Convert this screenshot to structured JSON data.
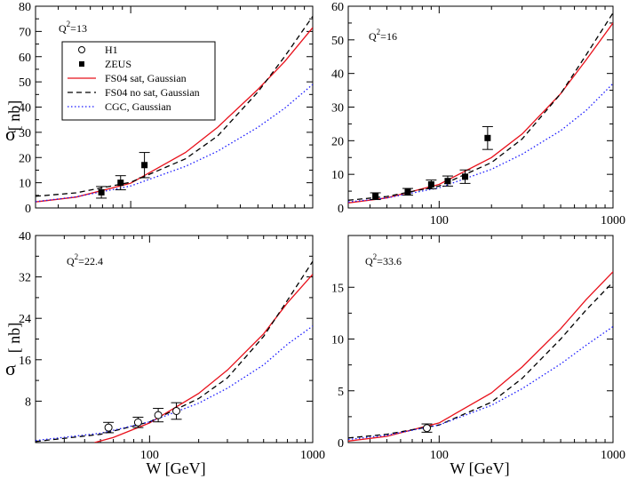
{
  "y_unit": "[ nb]",
  "y_symbol": "σ",
  "x_label": "W [GeV]",
  "legend": [
    {
      "label": "H1",
      "marker": "open-circle"
    },
    {
      "label": "ZEUS",
      "marker": "filled-square"
    },
    {
      "label": "FS04 sat, Gaussian",
      "line": "solid",
      "color": "#e8101a"
    },
    {
      "label": "FS04 no sat, Gaussian",
      "line": "dashed",
      "color": "#000000"
    },
    {
      "label": "CGC, Gaussian",
      "line": "dotted",
      "color": "#1a1aff"
    }
  ],
  "colors": {
    "fs04_sat": "#e8101a",
    "fs04_nosat": "#000000",
    "cgc": "#1a1aff"
  },
  "chart_data": [
    {
      "type": "scatter",
      "panel": "top-left",
      "annotation": {
        "base": "Q",
        "sup": "2",
        "rest": "=13"
      },
      "xscale": "log",
      "xlim": [
        30,
        1000
      ],
      "ylim": [
        0,
        80
      ],
      "xticks": [
        100,
        1000
      ],
      "xtick_labels": [
        "",
        ""
      ],
      "yticks": [
        0,
        10,
        20,
        30,
        40,
        50,
        60,
        70,
        80
      ],
      "ytick_labels": [
        "0",
        "10",
        "20",
        "30",
        "40",
        "50",
        "60",
        "70",
        "80"
      ],
      "points": [
        {
          "set": "ZEUS",
          "x": 69,
          "y": 6.2,
          "err": 2.3
        },
        {
          "set": "ZEUS",
          "x": 88,
          "y": 10.0,
          "err": 2.8
        },
        {
          "set": "ZEUS",
          "x": 119,
          "y": 17.0,
          "err": 5.0
        }
      ],
      "series": [
        {
          "name": "FS04 sat, Gaussian",
          "style": "solid",
          "x": [
            30,
            50,
            100,
            200,
            300,
            500,
            700,
            1000
          ],
          "y": [
            2.4,
            4.3,
            9.8,
            22.0,
            32.0,
            47.0,
            58.0,
            71.5
          ]
        },
        {
          "name": "FS04 no sat, Gaussian",
          "style": "dashed",
          "x": [
            30,
            50,
            100,
            200,
            300,
            500,
            700,
            1000
          ],
          "y": [
            4.6,
            6.0,
            10.2,
            19.5,
            28.5,
            46.0,
            60.0,
            76.0
          ]
        },
        {
          "name": "CGC, Gaussian",
          "style": "dotted",
          "x": [
            30,
            50,
            100,
            200,
            300,
            500,
            700,
            1000
          ],
          "y": [
            2.5,
            4.4,
            8.7,
            16.5,
            22.5,
            32.0,
            39.5,
            49.0
          ]
        }
      ]
    },
    {
      "type": "scatter",
      "panel": "top-right",
      "annotation": {
        "base": "Q",
        "sup": "2",
        "rest": "=16"
      },
      "xscale": "log",
      "xlim": [
        30,
        1000
      ],
      "ylim": [
        0,
        60
      ],
      "xticks": [
        100,
        1000
      ],
      "xtick_labels": [
        "100",
        "1000"
      ],
      "yticks": [
        0,
        10,
        20,
        30,
        40,
        50,
        60
      ],
      "ytick_labels": [
        "0",
        "10",
        "20",
        "30",
        "40",
        "50",
        "60"
      ],
      "points": [
        {
          "set": "ZEUS",
          "x": 43,
          "y": 3.5,
          "err": 1.0
        },
        {
          "set": "ZEUS",
          "x": 66,
          "y": 4.8,
          "err": 1.0
        },
        {
          "set": "ZEUS",
          "x": 90,
          "y": 7.0,
          "err": 1.3
        },
        {
          "set": "ZEUS",
          "x": 112,
          "y": 8.0,
          "err": 1.5
        },
        {
          "set": "ZEUS",
          "x": 141,
          "y": 9.3,
          "err": 2.0
        },
        {
          "set": "ZEUS",
          "x": 190,
          "y": 20.8,
          "err": 3.4
        }
      ],
      "series": [
        {
          "name": "FS04 sat, Gaussian",
          "style": "solid",
          "x": [
            30,
            50,
            100,
            200,
            300,
            500,
            700,
            1000
          ],
          "y": [
            1.5,
            3.0,
            7.0,
            15.0,
            22.0,
            34.0,
            44.0,
            55.0
          ]
        },
        {
          "name": "FS04 no sat, Gaussian",
          "style": "dashed",
          "x": [
            30,
            50,
            100,
            200,
            300,
            500,
            700,
            1000
          ],
          "y": [
            2.3,
            3.4,
            6.5,
            13.5,
            20.5,
            34.0,
            45.5,
            58.0
          ]
        },
        {
          "name": "CGC, Gaussian",
          "style": "dotted",
          "x": [
            30,
            50,
            100,
            200,
            300,
            500,
            700,
            1000
          ],
          "y": [
            1.8,
            3.0,
            6.0,
            11.5,
            16.0,
            23.0,
            29.0,
            37.0
          ]
        }
      ]
    },
    {
      "type": "scatter",
      "panel": "bottom-left",
      "annotation": {
        "base": "Q",
        "sup": "2",
        "rest": "=22.4"
      },
      "xscale": "log",
      "xlim": [
        20,
        1000
      ],
      "ylim": [
        0,
        40
      ],
      "xticks": [
        100,
        1000
      ],
      "xtick_labels": [
        "100",
        "1000"
      ],
      "yticks": [
        8,
        16,
        24,
        32,
        40
      ],
      "ytick_labels": [
        "8",
        "16",
        "24",
        "32",
        "40"
      ],
      "points": [
        {
          "set": "H1",
          "x": 56,
          "y": 2.9,
          "err": 1.0
        },
        {
          "set": "H1",
          "x": 85,
          "y": 3.9,
          "err": 1.0
        },
        {
          "set": "H1",
          "x": 113,
          "y": 5.3,
          "err": 1.3
        },
        {
          "set": "H1",
          "x": 146,
          "y": 6.1,
          "err": 1.6
        }
      ],
      "series": [
        {
          "name": "FS04 sat, Gaussian",
          "style": "solid",
          "x": [
            46,
            60,
            100,
            200,
            300,
            500,
            700,
            1000
          ],
          "y": [
            0,
            1.0,
            3.8,
            9.5,
            14.0,
            21.0,
            27.0,
            32.5
          ]
        },
        {
          "name": "FS04 no sat, Gaussian",
          "style": "dashed",
          "x": [
            20,
            50,
            100,
            200,
            300,
            500,
            700,
            1000
          ],
          "y": [
            0.2,
            1.6,
            4.0,
            8.5,
            12.5,
            20.5,
            27.5,
            35.0
          ]
        },
        {
          "name": "CGC, Gaussian",
          "style": "dotted",
          "x": [
            20,
            50,
            100,
            200,
            300,
            500,
            700,
            1000
          ],
          "y": [
            0.4,
            1.8,
            4.0,
            7.6,
            10.5,
            15.0,
            19.0,
            22.5
          ]
        }
      ]
    },
    {
      "type": "scatter",
      "panel": "bottom-right",
      "annotation": {
        "base": "Q",
        "sup": "2",
        "rest": "=33.6"
      },
      "xscale": "log",
      "xlim": [
        30,
        1000
      ],
      "ylim": [
        0,
        20
      ],
      "xticks": [
        100,
        1000
      ],
      "xtick_labels": [
        "100",
        "1000"
      ],
      "yticks": [
        0,
        5,
        10,
        15
      ],
      "ytick_labels": [
        "0",
        "5",
        "10",
        "15"
      ],
      "points": [
        {
          "set": "H1",
          "x": 85,
          "y": 1.4,
          "err": 0.4
        }
      ],
      "series": [
        {
          "name": "FS04 sat, Gaussian",
          "style": "solid",
          "x": [
            30,
            50,
            100,
            200,
            300,
            500,
            700,
            1000
          ],
          "y": [
            0.15,
            0.6,
            1.9,
            4.8,
            7.3,
            11.0,
            13.8,
            16.5
          ]
        },
        {
          "name": "FS04 no sat, Gaussian",
          "style": "dashed",
          "x": [
            30,
            50,
            100,
            200,
            300,
            500,
            700,
            1000
          ],
          "y": [
            0.45,
            0.8,
            1.7,
            3.9,
            6.2,
            10.0,
            12.8,
            15.5
          ]
        },
        {
          "name": "CGC, Gaussian",
          "style": "dotted",
          "x": [
            30,
            50,
            100,
            200,
            300,
            500,
            700,
            1000
          ],
          "y": [
            0.3,
            0.7,
            1.7,
            3.6,
            5.2,
            7.6,
            9.4,
            11.2
          ]
        }
      ]
    }
  ]
}
